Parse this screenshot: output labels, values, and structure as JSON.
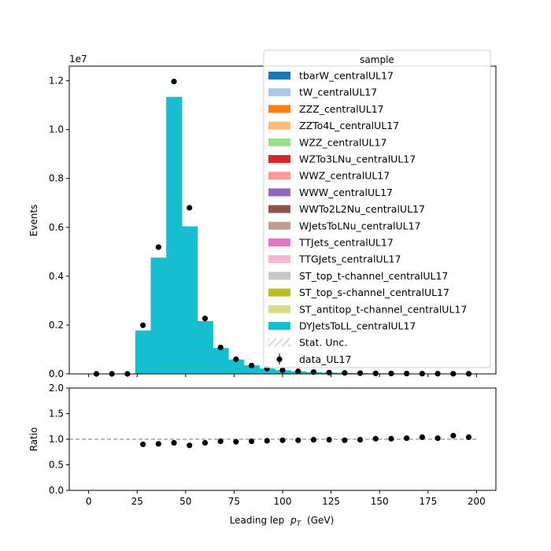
{
  "chart_data": [
    {
      "type": "bar",
      "stacked": true,
      "bin_width": 8,
      "bin_centers": [
        4,
        12,
        20,
        28,
        36,
        44,
        52,
        60,
        68,
        76,
        84,
        92,
        100,
        108,
        116,
        124,
        132,
        140,
        148,
        156,
        164,
        172,
        180,
        188,
        196
      ],
      "series": [
        {
          "name": "DYJetsToLL_centralUL17",
          "color": "#17becf",
          "values": [
            0,
            0,
            0,
            1780000,
            4760000,
            11340000,
            6040000,
            2160000,
            1060000,
            590000,
            350000,
            220000,
            150000,
            105000,
            75000,
            55000,
            40000,
            30000,
            22000,
            17000,
            13000,
            10000,
            8000,
            6000,
            5000
          ]
        }
      ],
      "data_series": {
        "name": "data_UL17",
        "values": [
          0,
          0,
          0,
          1990000,
          5190000,
          11970000,
          6800000,
          2270000,
          1080000,
          600000,
          340000,
          220000,
          150000,
          105000,
          75000,
          55000,
          40000,
          30000,
          22000,
          17000,
          13000,
          10000,
          8000,
          6000,
          5000
        ]
      },
      "ylabel": "Events",
      "ylim": [
        0,
        12600000
      ],
      "y_ticks": [
        "0.0",
        "0.2",
        "0.4",
        "0.6",
        "0.8",
        "1.0",
        "1.2"
      ],
      "y_ticks_values": [
        0,
        2000000,
        4000000,
        6000000,
        8000000,
        10000000,
        12000000
      ],
      "offset_text": "1e7",
      "legend": {
        "title": "sample",
        "position": "top-right",
        "entries": [
          {
            "label": "tbarW_centralUL17",
            "color": "#1f77b4"
          },
          {
            "label": "tW_centralUL17",
            "color": "#aec7e8"
          },
          {
            "label": "ZZZ_centralUL17",
            "color": "#ff7f0e"
          },
          {
            "label": "ZZTo4L_centralUL17",
            "color": "#ffbb78"
          },
          {
            "label": "WZZ_centralUL17",
            "color": "#98df8a"
          },
          {
            "label": "WZTo3LNu_centralUL17",
            "color": "#d62728"
          },
          {
            "label": "WWZ_centralUL17",
            "color": "#ff9896"
          },
          {
            "label": "WWW_centralUL17",
            "color": "#9467bd"
          },
          {
            "label": "WWTo2L2Nu_centralUL17",
            "color": "#8c564b"
          },
          {
            "label": "WJetsToLNu_centralUL17",
            "color": "#c49c94"
          },
          {
            "label": "TTJets_centralUL17",
            "color": "#e377c2"
          },
          {
            "label": "TTGJets_centralUL17",
            "color": "#f7b6d2"
          },
          {
            "label": "ST_top_t-channel_centralUL17",
            "color": "#c7c7c7"
          },
          {
            "label": "ST_top_s-channel_centralUL17",
            "color": "#bcbd22"
          },
          {
            "label": "ST_antitop_t-channel_centralUL17",
            "color": "#dbdb8d"
          },
          {
            "label": "DYJetsToLL_centralUL17",
            "color": "#17becf"
          },
          {
            "label": "Stat. Unc.",
            "kind": "hatch"
          },
          {
            "label": "data_UL17",
            "kind": "errorbar"
          }
        ]
      }
    },
    {
      "type": "scatter",
      "x": [
        28,
        36,
        44,
        52,
        60,
        68,
        76,
        84,
        92,
        100,
        108,
        116,
        124,
        132,
        140,
        148,
        156,
        164,
        172,
        180,
        188,
        196
      ],
      "y": [
        0.9,
        0.91,
        0.93,
        0.88,
        0.93,
        0.96,
        0.95,
        0.96,
        0.97,
        0.98,
        0.98,
        0.99,
        0.99,
        0.98,
        0.99,
        1.01,
        1.01,
        1.02,
        1.04,
        1.02,
        1.07,
        1.04
      ],
      "ylabel": "Ratio",
      "ylim": [
        0,
        2
      ],
      "y_ticks": [
        "0.0",
        "0.5",
        "1.0",
        "1.5",
        "2.0"
      ],
      "y_ticks_values": [
        0,
        0.5,
        1.0,
        1.5,
        2.0
      ],
      "reference_line": 1.0,
      "xlabel": "Leading lep",
      "xlabel_symbol": "p",
      "xlabel_subscript": "T",
      "xlabel_unit": "(GeV)",
      "xlim": [
        -10,
        210
      ],
      "x_ticks": [
        "0",
        "25",
        "50",
        "75",
        "100",
        "125",
        "150",
        "175",
        "200"
      ],
      "x_ticks_values": [
        0,
        25,
        50,
        75,
        100,
        125,
        150,
        175,
        200
      ]
    }
  ]
}
